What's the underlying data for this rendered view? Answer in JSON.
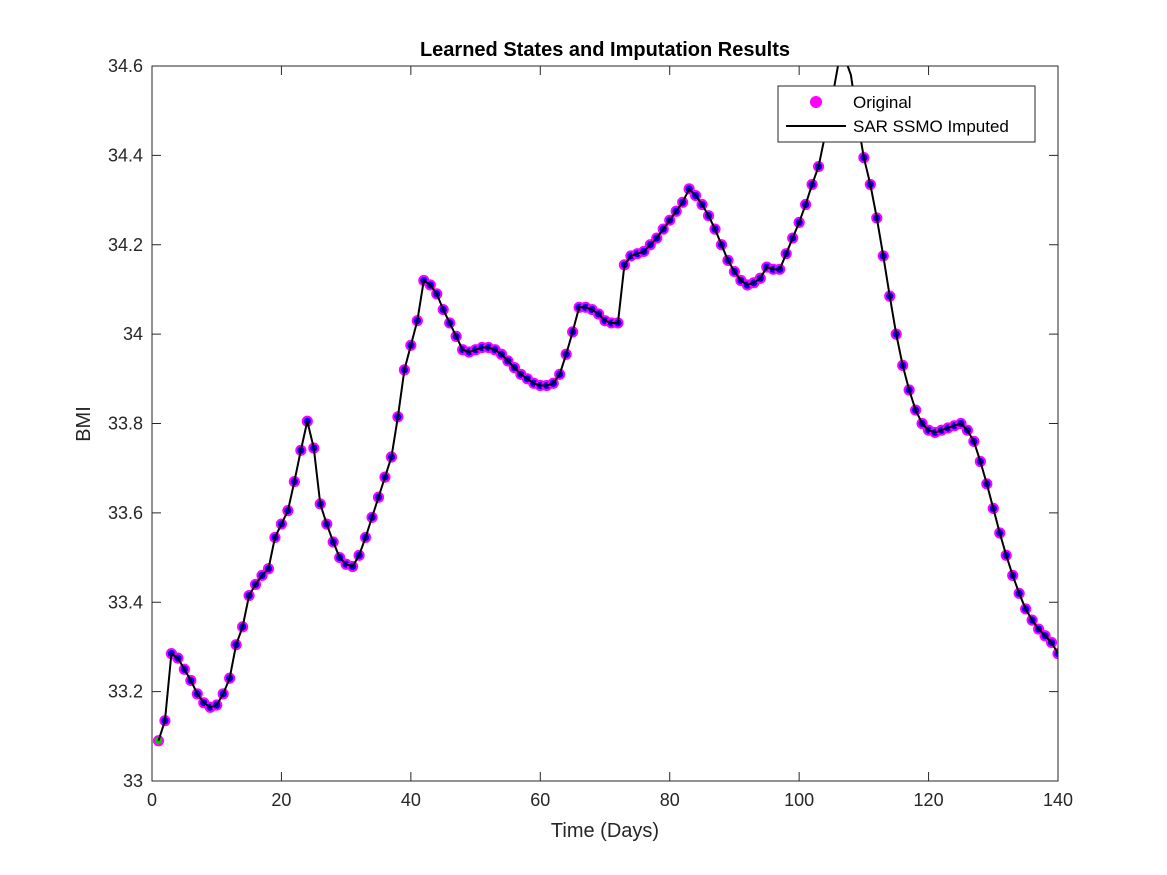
{
  "chart_data": {
    "type": "line",
    "title": "Learned States and Imputation Results",
    "xlabel": "Time (Days)",
    "ylabel": "BMI",
    "xlim": [
      0,
      140
    ],
    "ylim": [
      33,
      34.6
    ],
    "xticks": [
      0,
      20,
      40,
      60,
      80,
      100,
      120,
      140
    ],
    "yticks": [
      33,
      33.2,
      33.4,
      33.6,
      33.8,
      34,
      34.2,
      34.4,
      34.6
    ],
    "xtick_labels": [
      "0",
      "20",
      "40",
      "60",
      "80",
      "100",
      "120",
      "140"
    ],
    "ytick_labels": [
      "33",
      "33.2",
      "33.4",
      "33.6",
      "33.8",
      "34",
      "34.2",
      "34.4",
      "34.6"
    ],
    "grid": false,
    "legend_position": "top-right",
    "colors": {
      "marker_edge": "#ff00ff",
      "marker_fill": "#0000ff",
      "first_marker_fill": "#00cc00",
      "line": "#000000"
    },
    "series": [
      {
        "name": "Original",
        "kind": "markers",
        "x": [
          1,
          2,
          3,
          4,
          5,
          6,
          7,
          8,
          9,
          10,
          11,
          12,
          13,
          14,
          15,
          16,
          17,
          18,
          19,
          20,
          21,
          22,
          23,
          24,
          25,
          26,
          27,
          28,
          29,
          30,
          31,
          32,
          33,
          34,
          35,
          36,
          37,
          38,
          39,
          40,
          41,
          42,
          43,
          44,
          45,
          46,
          47,
          48,
          49,
          50,
          51,
          52,
          53,
          54,
          55,
          56,
          57,
          58,
          59,
          60,
          61,
          62,
          63,
          64,
          65,
          66,
          67,
          68,
          69,
          70,
          71,
          72,
          73,
          74,
          75,
          76,
          77,
          78,
          79,
          80,
          81,
          82,
          83,
          84,
          85,
          86,
          87,
          88,
          89,
          90,
          91,
          92,
          93,
          94,
          95,
          96,
          97,
          98,
          99,
          100,
          101,
          102,
          103,
          104,
          110,
          111,
          112,
          113,
          114,
          115,
          116,
          117,
          118,
          119,
          120,
          121,
          122,
          123,
          124,
          125,
          126,
          127,
          128,
          129,
          130,
          131,
          132,
          133,
          134,
          135,
          136,
          137,
          138,
          139,
          140
        ],
        "y": [
          33.09,
          33.135,
          33.285,
          33.275,
          33.25,
          33.225,
          33.195,
          33.175,
          33.165,
          33.17,
          33.195,
          33.23,
          33.305,
          33.345,
          33.415,
          33.44,
          33.46,
          33.475,
          33.545,
          33.575,
          33.605,
          33.67,
          33.74,
          33.805,
          33.745,
          33.62,
          33.575,
          33.535,
          33.5,
          33.485,
          33.48,
          33.505,
          33.545,
          33.59,
          33.635,
          33.68,
          33.725,
          33.815,
          33.92,
          33.975,
          34.03,
          34.12,
          34.11,
          34.09,
          34.055,
          34.025,
          33.995,
          33.965,
          33.96,
          33.965,
          33.97,
          33.97,
          33.965,
          33.955,
          33.94,
          33.925,
          33.91,
          33.9,
          33.89,
          33.885,
          33.885,
          33.89,
          33.91,
          33.955,
          34.005,
          34.06,
          34.06,
          34.055,
          34.045,
          34.03,
          34.025,
          34.025,
          34.155,
          34.175,
          34.18,
          34.185,
          34.2,
          34.215,
          34.235,
          34.255,
          34.275,
          34.295,
          34.325,
          34.31,
          34.29,
          34.265,
          34.235,
          34.2,
          34.165,
          34.14,
          34.12,
          34.11,
          34.115,
          34.125,
          34.15,
          34.145,
          34.145,
          34.18,
          34.215,
          34.25,
          34.29,
          34.335,
          34.375,
          34.445,
          34.395,
          34.335,
          34.26,
          34.175,
          34.085,
          34.0,
          33.93,
          33.875,
          33.83,
          33.8,
          33.785,
          33.78,
          33.785,
          33.79,
          33.795,
          33.8,
          33.785,
          33.76,
          33.715,
          33.665,
          33.61,
          33.555,
          33.505,
          33.46,
          33.42,
          33.385,
          33.36,
          33.34,
          33.325,
          33.31,
          33.285
        ]
      },
      {
        "name": "SAR SSMO Imputed",
        "kind": "line",
        "x": [
          1,
          2,
          3,
          4,
          5,
          6,
          7,
          8,
          9,
          10,
          11,
          12,
          13,
          14,
          15,
          16,
          17,
          18,
          19,
          20,
          21,
          22,
          23,
          24,
          25,
          26,
          27,
          28,
          29,
          30,
          31,
          32,
          33,
          34,
          35,
          36,
          37,
          38,
          39,
          40,
          41,
          42,
          43,
          44,
          45,
          46,
          47,
          48,
          49,
          50,
          51,
          52,
          53,
          54,
          55,
          56,
          57,
          58,
          59,
          60,
          61,
          62,
          63,
          64,
          65,
          66,
          67,
          68,
          69,
          70,
          71,
          72,
          73,
          74,
          75,
          76,
          77,
          78,
          79,
          80,
          81,
          82,
          83,
          84,
          85,
          86,
          87,
          88,
          89,
          90,
          91,
          92,
          93,
          94,
          95,
          96,
          97,
          98,
          99,
          100,
          101,
          102,
          103,
          104,
          105,
          106,
          107,
          108,
          109,
          110,
          111,
          112,
          113,
          114,
          115,
          116,
          117,
          118,
          119,
          120,
          121,
          122,
          123,
          124,
          125,
          126,
          127,
          128,
          129,
          130,
          131,
          132,
          133,
          134,
          135,
          136,
          137,
          138,
          139,
          140
        ],
        "y": [
          33.09,
          33.135,
          33.285,
          33.275,
          33.25,
          33.225,
          33.195,
          33.175,
          33.165,
          33.17,
          33.195,
          33.23,
          33.305,
          33.345,
          33.415,
          33.44,
          33.46,
          33.475,
          33.545,
          33.575,
          33.605,
          33.67,
          33.74,
          33.805,
          33.745,
          33.62,
          33.575,
          33.535,
          33.5,
          33.485,
          33.48,
          33.505,
          33.545,
          33.59,
          33.635,
          33.68,
          33.725,
          33.815,
          33.92,
          33.975,
          34.03,
          34.12,
          34.11,
          34.09,
          34.055,
          34.025,
          33.995,
          33.965,
          33.96,
          33.965,
          33.97,
          33.97,
          33.965,
          33.955,
          33.94,
          33.925,
          33.91,
          33.9,
          33.89,
          33.885,
          33.885,
          33.89,
          33.91,
          33.955,
          34.005,
          34.06,
          34.06,
          34.055,
          34.045,
          34.03,
          34.025,
          34.025,
          34.155,
          34.175,
          34.18,
          34.185,
          34.2,
          34.215,
          34.235,
          34.255,
          34.275,
          34.295,
          34.325,
          34.31,
          34.29,
          34.265,
          34.235,
          34.2,
          34.165,
          34.14,
          34.12,
          34.11,
          34.115,
          34.125,
          34.15,
          34.145,
          34.145,
          34.18,
          34.215,
          34.25,
          34.29,
          34.335,
          34.375,
          34.445,
          34.52,
          34.6,
          34.62,
          34.58,
          34.48,
          34.395,
          34.335,
          34.26,
          34.175,
          34.085,
          34.0,
          33.93,
          33.875,
          33.83,
          33.8,
          33.785,
          33.78,
          33.785,
          33.79,
          33.795,
          33.8,
          33.785,
          33.76,
          33.715,
          33.665,
          33.61,
          33.555,
          33.505,
          33.46,
          33.42,
          33.385,
          33.36,
          33.34,
          33.325,
          33.31,
          33.285
        ]
      }
    ]
  }
}
